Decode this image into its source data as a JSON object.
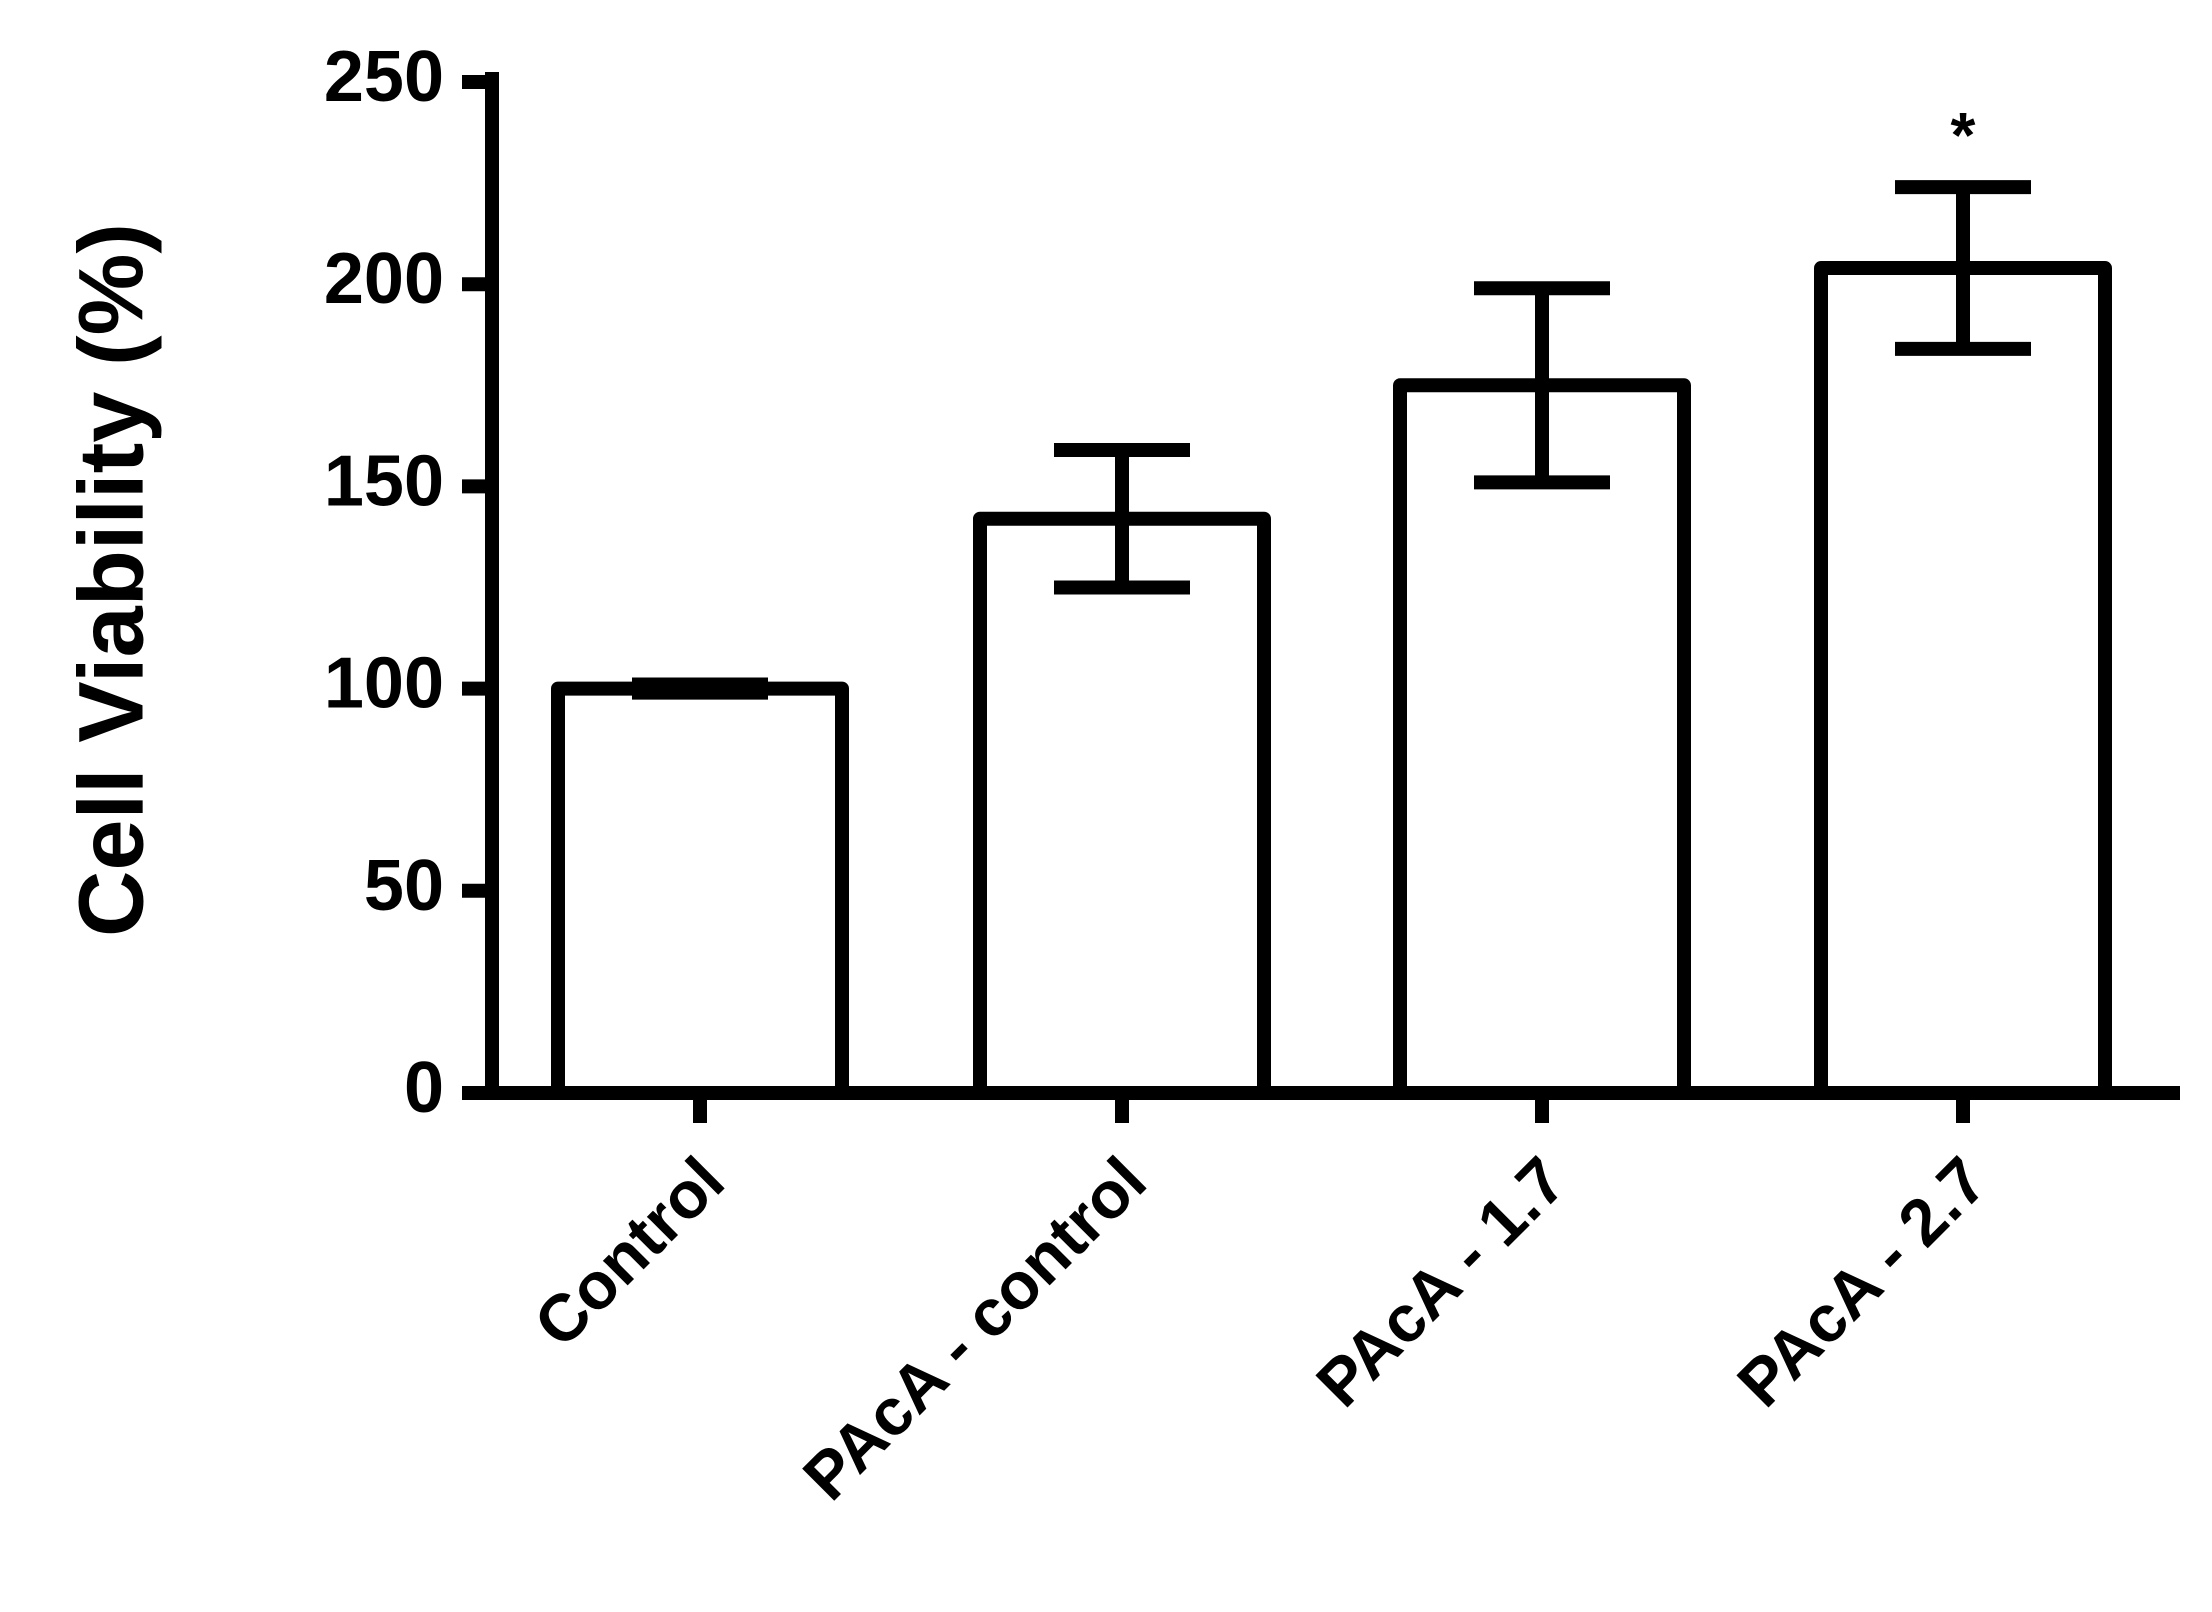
{
  "chart_data": {
    "type": "bar",
    "categories": [
      "Control",
      "PAcA - control",
      "PAcA - 1.7",
      "PAcA - 2.7"
    ],
    "values": [
      100,
      142,
      175,
      204
    ],
    "errors": [
      1,
      17,
      24,
      20
    ],
    "annotations": [
      "",
      "",
      "",
      "*"
    ],
    "ylabel": "Cell Viability (%)",
    "xlabel": "",
    "ylim": [
      0,
      250
    ],
    "yticks": [
      0,
      50,
      100,
      150,
      200,
      250
    ],
    "grid": false,
    "legend": "none",
    "bar_fill": "#ffffff",
    "stroke_color": "#000000"
  }
}
